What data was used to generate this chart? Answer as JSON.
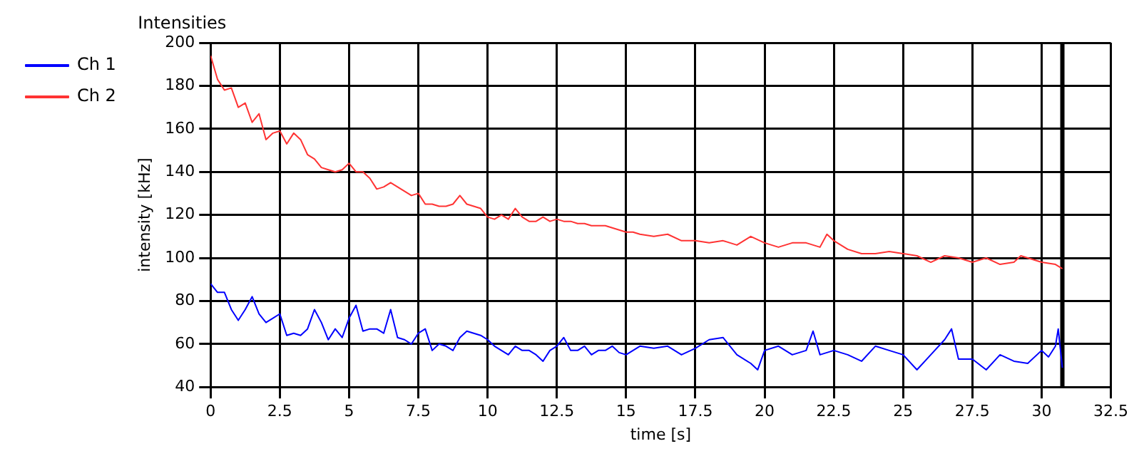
{
  "chart_data": {
    "type": "line",
    "title": "Intensities",
    "xlabel": "time [s]",
    "ylabel": "intensity [kHz]",
    "xlim": [
      0,
      32.5
    ],
    "xticks": [
      0,
      2.5,
      5,
      7.5,
      10,
      12.5,
      15,
      17.5,
      20,
      22.5,
      25,
      27.5,
      30,
      32.5
    ],
    "ylim": [
      40,
      200
    ],
    "yticks": [
      40,
      60,
      80,
      100,
      120,
      140,
      160,
      180,
      200
    ],
    "grid": true,
    "legend": "top left",
    "marker": "none",
    "line_style": "solid",
    "ref_lines": [
      {
        "axis": "x",
        "value": 30.75,
        "color": "#000000"
      }
    ],
    "series": [
      {
        "name": "Ch 1",
        "color": "#0000ff",
        "x": [
          0,
          0.25,
          0.5,
          0.75,
          1,
          1.25,
          1.5,
          1.75,
          2,
          2.25,
          2.5,
          2.75,
          3,
          3.25,
          3.5,
          3.75,
          4,
          4.25,
          4.5,
          4.75,
          5,
          5.25,
          5.5,
          5.75,
          6,
          6.25,
          6.5,
          6.75,
          7,
          7.25,
          7.5,
          7.75,
          8,
          8.25,
          8.5,
          8.75,
          9,
          9.25,
          9.5,
          9.75,
          10,
          10.25,
          10.5,
          10.75,
          11,
          11.25,
          11.5,
          11.75,
          12,
          12.25,
          12.5,
          12.75,
          13,
          13.25,
          13.5,
          13.75,
          14,
          14.25,
          14.5,
          14.75,
          15,
          15.25,
          15.5,
          16,
          16.5,
          17,
          17.5,
          18,
          18.5,
          19,
          19.5,
          19.75,
          20,
          20.5,
          21,
          21.5,
          21.75,
          22,
          22.5,
          23,
          23.5,
          24,
          24.5,
          25,
          25.5,
          26,
          26.5,
          26.75,
          27,
          27.5,
          28,
          28.5,
          29,
          29.5,
          30,
          30.25,
          30.5,
          30.6,
          30.75
        ],
        "values": [
          88,
          84,
          84,
          76,
          71,
          76,
          82,
          74,
          70,
          72,
          74,
          64,
          65,
          64,
          67,
          76,
          70,
          62,
          67,
          63,
          72,
          78,
          66,
          67,
          67,
          65,
          76,
          63,
          62,
          60,
          65,
          67,
          57,
          60,
          59,
          57,
          63,
          66,
          65,
          64,
          62,
          59,
          57,
          55,
          59,
          57,
          57,
          55,
          52,
          57,
          59,
          63,
          57,
          57,
          59,
          55,
          57,
          57,
          59,
          56,
          55,
          57,
          59,
          58,
          59,
          55,
          58,
          62,
          63,
          55,
          51,
          48,
          57,
          59,
          55,
          57,
          66,
          55,
          57,
          55,
          52,
          59,
          57,
          55,
          48,
          55,
          62,
          67,
          53,
          53,
          48,
          55,
          52,
          51,
          57,
          54,
          59,
          67,
          49
        ]
      },
      {
        "name": "Ch 2",
        "color": "#ff3333",
        "x": [
          0,
          0.25,
          0.5,
          0.75,
          1,
          1.25,
          1.5,
          1.75,
          2,
          2.25,
          2.5,
          2.75,
          3,
          3.25,
          3.5,
          3.75,
          4,
          4.25,
          4.5,
          4.75,
          5,
          5.25,
          5.5,
          5.75,
          6,
          6.25,
          6.5,
          6.75,
          7,
          7.25,
          7.5,
          7.75,
          8,
          8.25,
          8.5,
          8.75,
          9,
          9.25,
          9.5,
          9.75,
          10,
          10.25,
          10.5,
          10.75,
          11,
          11.25,
          11.5,
          11.75,
          12,
          12.25,
          12.5,
          12.75,
          13,
          13.25,
          13.5,
          13.75,
          14,
          14.25,
          14.5,
          14.75,
          15,
          15.25,
          15.5,
          16,
          16.5,
          17,
          17.5,
          18,
          18.5,
          19,
          19.5,
          20,
          20.5,
          21,
          21.5,
          22,
          22.25,
          22.5,
          23,
          23.5,
          24,
          24.5,
          25,
          25.5,
          26,
          26.5,
          27,
          27.5,
          28,
          28.5,
          29,
          29.25,
          29.5,
          30,
          30.5,
          30.75
        ],
        "values": [
          194,
          183,
          178,
          179,
          170,
          172,
          163,
          167,
          155,
          158,
          159,
          153,
          158,
          155,
          148,
          146,
          142,
          141,
          140,
          141,
          144,
          140,
          140,
          137,
          132,
          133,
          135,
          133,
          131,
          129,
          130,
          125,
          125,
          124,
          124,
          125,
          129,
          125,
          124,
          123,
          119,
          118,
          120,
          118,
          123,
          119,
          117,
          117,
          119,
          117,
          118,
          117,
          117,
          116,
          116,
          115,
          115,
          115,
          114,
          113,
          112,
          112,
          111,
          110,
          111,
          108,
          108,
          107,
          108,
          106,
          110,
          107,
          105,
          107,
          107,
          105,
          111,
          108,
          104,
          102,
          102,
          103,
          102,
          101,
          98,
          101,
          100,
          98,
          100,
          97,
          98,
          101,
          100,
          98,
          97,
          95
        ]
      }
    ]
  }
}
